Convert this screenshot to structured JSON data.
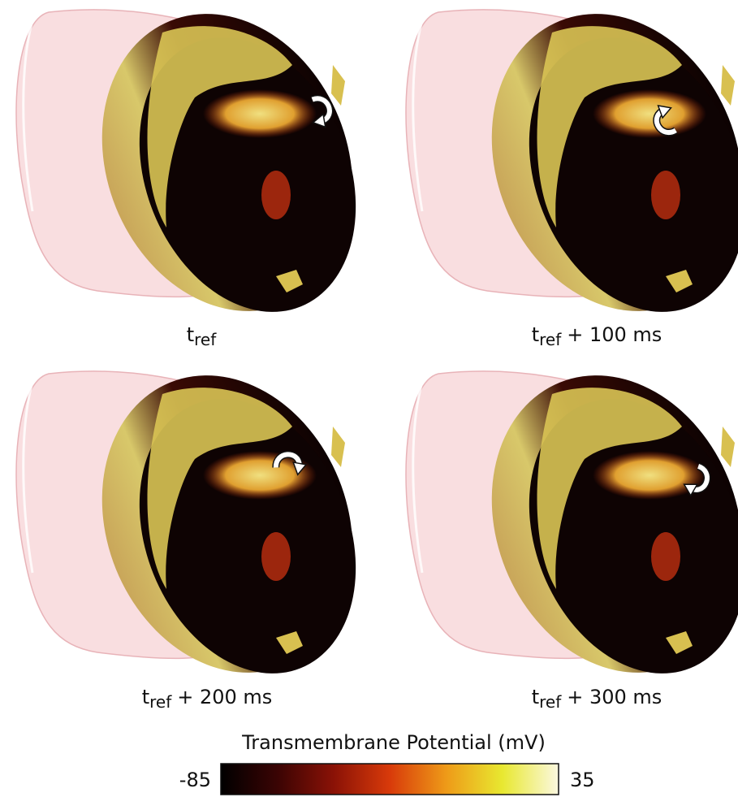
{
  "panels": [
    {
      "base": "t",
      "sub": "ref"
    },
    {
      "base": "t",
      "sub": "ref",
      "suffix": "+ 100 ms"
    },
    {
      "base": "t",
      "sub": "ref",
      "suffix": "+ 200 ms"
    },
    {
      "base": "t",
      "sub": "ref",
      "suffix": "+ 300 ms"
    }
  ],
  "colorbar": {
    "title": "Transmembrane Potential (mV)",
    "min": -85,
    "max": 35,
    "colors": [
      "#000000",
      "#3a0404",
      "#8a1206",
      "#d83a0a",
      "#ee9a18",
      "#e8e830",
      "#fbf8e0"
    ]
  }
}
